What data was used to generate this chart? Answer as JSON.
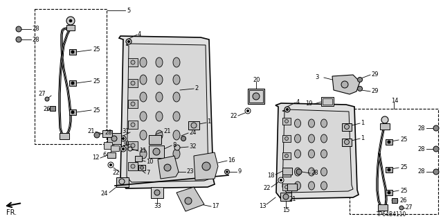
{
  "bg_color": "#ffffff",
  "part_number": "TP64B4110",
  "fig_width": 6.4,
  "fig_height": 3.19,
  "dpi": 100,
  "seat_left": {
    "frame_color": "#c8c8c8",
    "inner_color": "#b8b8b8"
  },
  "seat_right": {
    "frame_color": "#c8c8c8",
    "inner_color": "#b8b8b8"
  }
}
